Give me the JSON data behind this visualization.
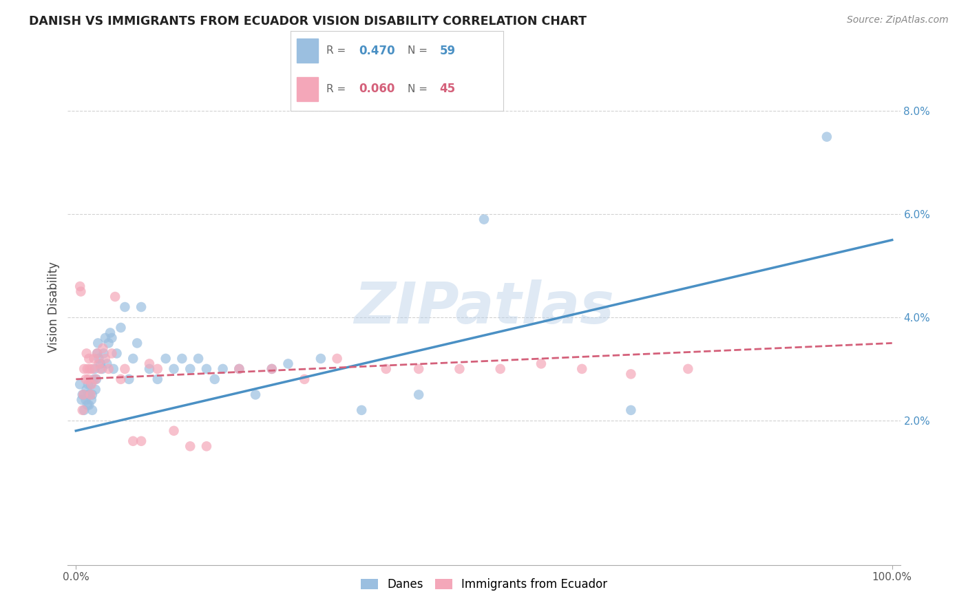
{
  "title": "DANISH VS IMMIGRANTS FROM ECUADOR VISION DISABILITY CORRELATION CHART",
  "source": "Source: ZipAtlas.com",
  "ylabel": "Vision Disability",
  "watermark": "ZIPatlas",
  "xlim": [
    -0.01,
    1.01
  ],
  "ylim": [
    -0.008,
    0.092
  ],
  "xticks": [
    0.0,
    1.0
  ],
  "xtick_labels": [
    "0.0%",
    "100.0%"
  ],
  "yticks": [
    0.02,
    0.04,
    0.06,
    0.08
  ],
  "ytick_labels": [
    "2.0%",
    "4.0%",
    "6.0%",
    "8.0%"
  ],
  "background_color": "#ffffff",
  "danes_color": "#9BBFE0",
  "ecuador_color": "#F4A7B9",
  "danes_line_color": "#4A90C4",
  "ecuador_line_color": "#D4607A",
  "danes_R": 0.47,
  "danes_N": 59,
  "ecuador_R": 0.06,
  "ecuador_N": 45,
  "danes_line_x0": 0.0,
  "danes_line_y0": 0.018,
  "danes_line_x1": 1.0,
  "danes_line_y1": 0.055,
  "ecuador_line_x0": 0.0,
  "ecuador_line_y0": 0.028,
  "ecuador_line_x1": 1.0,
  "ecuador_line_y1": 0.035,
  "danes_x": [
    0.005,
    0.007,
    0.008,
    0.01,
    0.01,
    0.012,
    0.013,
    0.014,
    0.015,
    0.015,
    0.016,
    0.017,
    0.018,
    0.019,
    0.02,
    0.02,
    0.022,
    0.023,
    0.024,
    0.025,
    0.026,
    0.027,
    0.028,
    0.03,
    0.032,
    0.034,
    0.036,
    0.038,
    0.04,
    0.042,
    0.044,
    0.046,
    0.05,
    0.055,
    0.06,
    0.065,
    0.07,
    0.075,
    0.08,
    0.09,
    0.1,
    0.11,
    0.12,
    0.13,
    0.14,
    0.15,
    0.16,
    0.17,
    0.18,
    0.2,
    0.22,
    0.24,
    0.26,
    0.3,
    0.35,
    0.42,
    0.5,
    0.68,
    0.92
  ],
  "danes_y": [
    0.027,
    0.024,
    0.025,
    0.022,
    0.025,
    0.024,
    0.026,
    0.023,
    0.025,
    0.027,
    0.023,
    0.025,
    0.027,
    0.024,
    0.022,
    0.025,
    0.028,
    0.03,
    0.026,
    0.028,
    0.033,
    0.035,
    0.032,
    0.031,
    0.03,
    0.033,
    0.036,
    0.031,
    0.035,
    0.037,
    0.036,
    0.03,
    0.033,
    0.038,
    0.042,
    0.028,
    0.032,
    0.035,
    0.042,
    0.03,
    0.028,
    0.032,
    0.03,
    0.032,
    0.03,
    0.032,
    0.03,
    0.028,
    0.03,
    0.03,
    0.025,
    0.03,
    0.031,
    0.032,
    0.022,
    0.025,
    0.059,
    0.022,
    0.075
  ],
  "ecuador_x": [
    0.005,
    0.006,
    0.008,
    0.009,
    0.01,
    0.012,
    0.013,
    0.014,
    0.015,
    0.016,
    0.017,
    0.018,
    0.019,
    0.02,
    0.022,
    0.024,
    0.026,
    0.028,
    0.03,
    0.033,
    0.036,
    0.04,
    0.044,
    0.048,
    0.055,
    0.06,
    0.07,
    0.08,
    0.09,
    0.1,
    0.12,
    0.14,
    0.16,
    0.2,
    0.24,
    0.28,
    0.32,
    0.38,
    0.42,
    0.47,
    0.52,
    0.57,
    0.62,
    0.68,
    0.75
  ],
  "ecuador_y": [
    0.046,
    0.045,
    0.022,
    0.025,
    0.03,
    0.028,
    0.033,
    0.03,
    0.028,
    0.032,
    0.03,
    0.025,
    0.027,
    0.03,
    0.032,
    0.028,
    0.033,
    0.031,
    0.03,
    0.034,
    0.032,
    0.03,
    0.033,
    0.044,
    0.028,
    0.03,
    0.016,
    0.016,
    0.031,
    0.03,
    0.018,
    0.015,
    0.015,
    0.03,
    0.03,
    0.028,
    0.032,
    0.03,
    0.03,
    0.03,
    0.03,
    0.031,
    0.03,
    0.029,
    0.03
  ]
}
